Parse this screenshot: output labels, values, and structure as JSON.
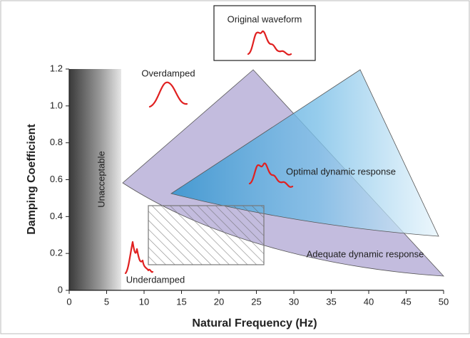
{
  "chart_data": {
    "type": "region",
    "x_label": "Natural Frequency (Hz)",
    "y_label": "Damping Coefficient",
    "xlim": [
      0,
      50
    ],
    "ylim": [
      0,
      1.2
    ],
    "xticks": [
      0,
      5,
      10,
      15,
      20,
      25,
      30,
      35,
      40,
      45,
      50
    ],
    "yticks": [
      0,
      0.2,
      0.4,
      0.6,
      0.8,
      {
        "value": 1.0,
        "label": "1.0"
      },
      1.2
    ],
    "annotations": {
      "original_waveform": "Original waveform",
      "overdamped": "Overdamped",
      "unacceptable": "Unacceptable",
      "optimal": "Optimal dynamic response",
      "adequate": "Adequate dynamic response",
      "underdamped": "Underdamped"
    }
  }
}
